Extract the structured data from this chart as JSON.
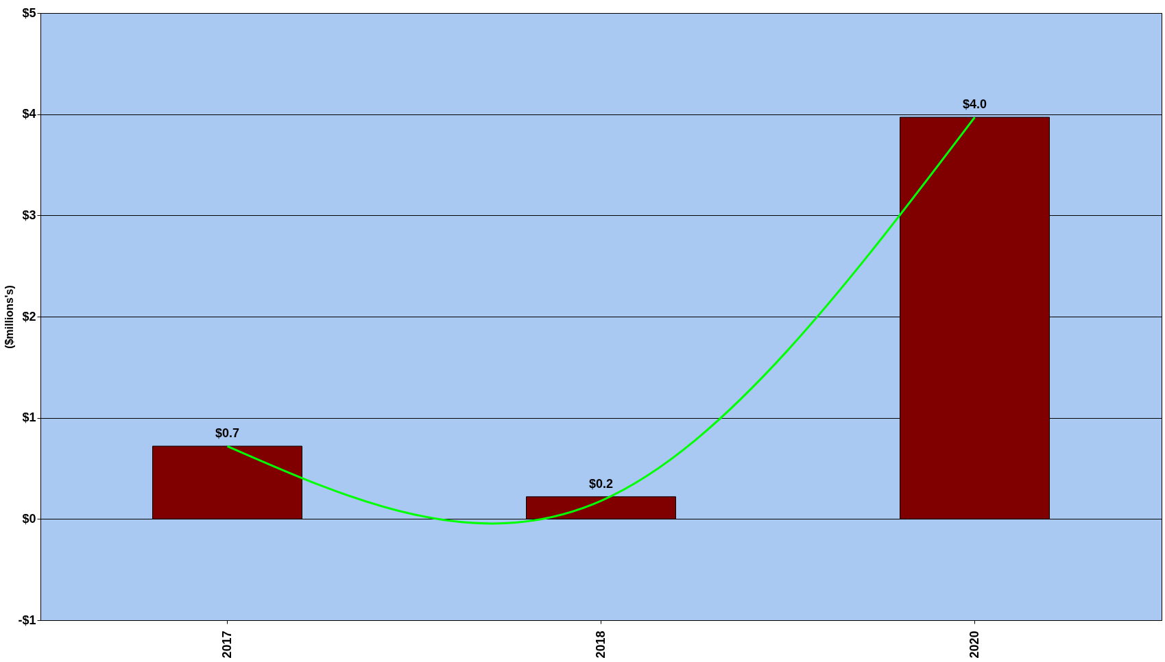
{
  "chart_data": {
    "type": "bar",
    "ylabel": "($millions's)",
    "categories": [
      "2017",
      "2018",
      "2020"
    ],
    "series": [
      {
        "color": "#800000",
        "values": [
          0.72,
          0.22,
          3.97
        ],
        "value_labels": [
          "$0.7",
          "$0.2",
          "$4.0"
        ]
      },
      {
        "type": "line",
        "color": "#00ff00",
        "values": [
          0.72,
          0.18,
          3.97
        ],
        "line_style": "solid",
        "marker": "none"
      }
    ],
    "ylim": [
      -1,
      5
    ],
    "yticks": [
      {
        "value": -1,
        "label": "-$1"
      },
      {
        "value": 0,
        "label": "$0"
      },
      {
        "value": 1,
        "label": "$1"
      },
      {
        "value": 2,
        "label": "$2"
      },
      {
        "value": 3,
        "label": "$3"
      },
      {
        "value": 4,
        "label": "$4"
      },
      {
        "value": 5,
        "label": "$5"
      }
    ],
    "grid": "y"
  }
}
